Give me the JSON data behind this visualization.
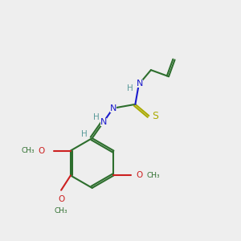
{
  "bg_color": "#eeeeee",
  "bond_color": "#2d6e2d",
  "N_color": "#1a1acc",
  "S_color": "#aaaa00",
  "O_color": "#cc2020",
  "H_color": "#5a9a9a",
  "figsize": [
    3.0,
    3.0
  ],
  "dpi": 100,
  "xlim": [
    0,
    10
  ],
  "ylim": [
    0,
    10
  ]
}
